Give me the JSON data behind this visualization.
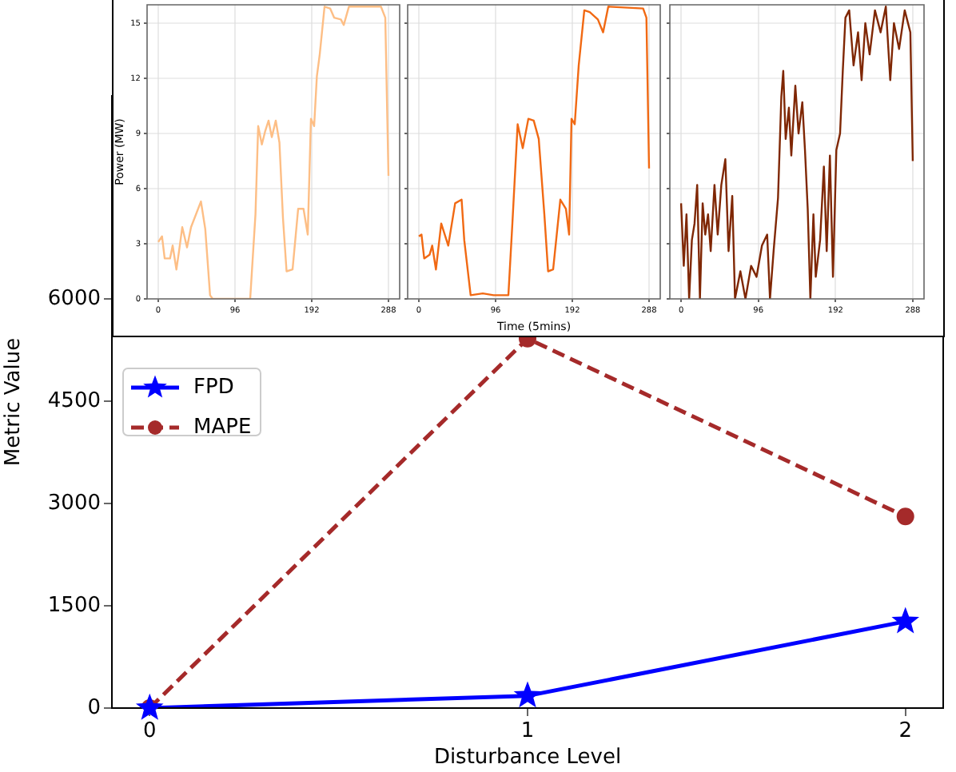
{
  "chart_data": [
    {
      "type": "line",
      "xlabel": "Disturbance Level",
      "ylabel": "Metric Value",
      "x": [
        0,
        1,
        2
      ],
      "xlim": [
        -0.1,
        2.1
      ],
      "xticks": [
        0,
        1,
        2
      ],
      "ylim": [
        0,
        8980
      ],
      "yticks": [
        0,
        1500,
        3000,
        4500,
        6000
      ],
      "grid": false,
      "legend": "left",
      "series": [
        {
          "name": "FPD",
          "color": "#0000ff",
          "values": [
            0,
            180,
            1270
          ],
          "marker": "star",
          "line_style": "solid"
        },
        {
          "name": "MAPE",
          "color": "#a52a2a",
          "values": [
            0,
            5420,
            2810
          ],
          "marker": "circle",
          "line_style": "dashed"
        }
      ]
    },
    {
      "type": "line",
      "ylabel": "Power (MW)",
      "xlim": [
        -14,
        302
      ],
      "xticks": [
        0,
        96,
        192,
        288
      ],
      "ylim": [
        0,
        16
      ],
      "yticks": [
        0,
        3,
        6,
        9,
        12,
        15
      ],
      "grid": true,
      "marker": "none",
      "x": [
        0,
        4.7,
        8,
        14.7,
        18,
        22.7,
        26,
        30,
        36,
        41,
        53.4,
        58.8,
        64.8,
        68,
        115,
        121.6,
        125,
        129.6,
        133.6,
        138,
        142,
        147,
        151.6,
        156,
        160.5,
        168,
        175,
        181.7,
        187,
        191,
        195,
        198.4,
        202,
        208,
        215,
        220,
        228.5,
        232,
        238.5,
        278.6,
        284,
        288
      ],
      "series": [
        {
          "color": "#fdbe85",
          "values": [
            3.1,
            3.4,
            2.2,
            2.2,
            2.9,
            1.6,
            2.6,
            3.9,
            2.8,
            3.9,
            5.3,
            3.8,
            0.2,
            0,
            0,
            4.6,
            9.4,
            8.4,
            9.1,
            9.7,
            8.8,
            9.7,
            8.5,
            4.4,
            1.5,
            1.6,
            4.9,
            4.9,
            3.5,
            9.8,
            9.4,
            12.1,
            13.3,
            15.9,
            15.8,
            15.3,
            15.2,
            14.9,
            15.9,
            15.9,
            15.3,
            6.7
          ]
        }
      ]
    },
    {
      "type": "line",
      "xlabel": "Time (5mins)",
      "xlim": [
        -14,
        302
      ],
      "xticks": [
        0,
        96,
        192,
        288
      ],
      "ylim": [
        0,
        16
      ],
      "yticks": [
        0,
        3,
        6,
        9,
        12,
        15
      ],
      "grid": true,
      "marker": "none",
      "tick_labels": "x",
      "x": [
        0,
        3.3,
        6.7,
        13.4,
        16.7,
        21.4,
        28,
        36.8,
        45.4,
        53.5,
        56.8,
        64.8,
        80,
        93.5,
        112,
        117,
        123.6,
        130,
        137,
        143.7,
        150,
        157,
        161.7,
        168,
        177,
        184,
        188,
        191,
        195,
        200,
        207,
        213.8,
        224,
        230.5,
        237,
        280.6,
        284.7,
        288
      ],
      "series": [
        {
          "color": "#f16913",
          "values": [
            3.4,
            3.5,
            2.2,
            2.4,
            2.9,
            1.6,
            4.1,
            2.9,
            5.2,
            5.4,
            3.2,
            0.2,
            0.3,
            0.2,
            0.2,
            4.1,
            9.5,
            8.2,
            9.8,
            9.7,
            8.7,
            4.6,
            1.5,
            1.6,
            5.4,
            4.9,
            3.5,
            9.8,
            9.5,
            12.7,
            15.7,
            15.6,
            15.2,
            14.5,
            15.9,
            15.8,
            15.3,
            7.1
          ]
        }
      ]
    },
    {
      "type": "line",
      "xlim": [
        -14,
        302
      ],
      "xticks": [
        0,
        96,
        192,
        288
      ],
      "ylim": [
        0,
        16
      ],
      "yticks": [
        0,
        3,
        6,
        9,
        12,
        15
      ],
      "grid": true,
      "marker": "none",
      "tick_labels": "x",
      "x": [
        0,
        3.3,
        6.7,
        10,
        13.4,
        16.7,
        20,
        23.4,
        26.8,
        30,
        33.5,
        36.8,
        41.5,
        45.5,
        50,
        55,
        59,
        63.6,
        67,
        73.7,
        80,
        87,
        93.8,
        100.5,
        107,
        110.5,
        115,
        120.5,
        124.6,
        127,
        130,
        134,
        137,
        142,
        146,
        150.7,
        154,
        157.4,
        160.7,
        164.5,
        167.4,
        172.8,
        177.5,
        181,
        185,
        188.8,
        193,
        197.6,
        201,
        204.3,
        209,
        214.4,
        220,
        224.4,
        229,
        234.4,
        241,
        248,
        254.5,
        260,
        264.6,
        271,
        278,
        285,
        288
      ],
      "series": [
        {
          "color": "#7f2704",
          "values": [
            5.2,
            1.8,
            4.6,
            0,
            3.2,
            4.1,
            6.2,
            0,
            5.2,
            3.5,
            4.6,
            2.6,
            6.2,
            3.5,
            6.2,
            7.6,
            2.6,
            5.6,
            0,
            1.5,
            0,
            1.8,
            1.2,
            2.9,
            3.5,
            0,
            2.6,
            5.5,
            11,
            12.4,
            8.7,
            10.4,
            7.8,
            11.6,
            9,
            10.7,
            8.1,
            4.9,
            0,
            4.6,
            1.2,
            3.2,
            7.2,
            2.6,
            7.8,
            1.2,
            8.1,
            9,
            12.4,
            15.3,
            15.7,
            12.7,
            14.5,
            11.9,
            15,
            13.3,
            15.7,
            14.5,
            15.9,
            11.9,
            15,
            13.6,
            15.7,
            14.5,
            7.5
          ]
        }
      ]
    }
  ]
}
